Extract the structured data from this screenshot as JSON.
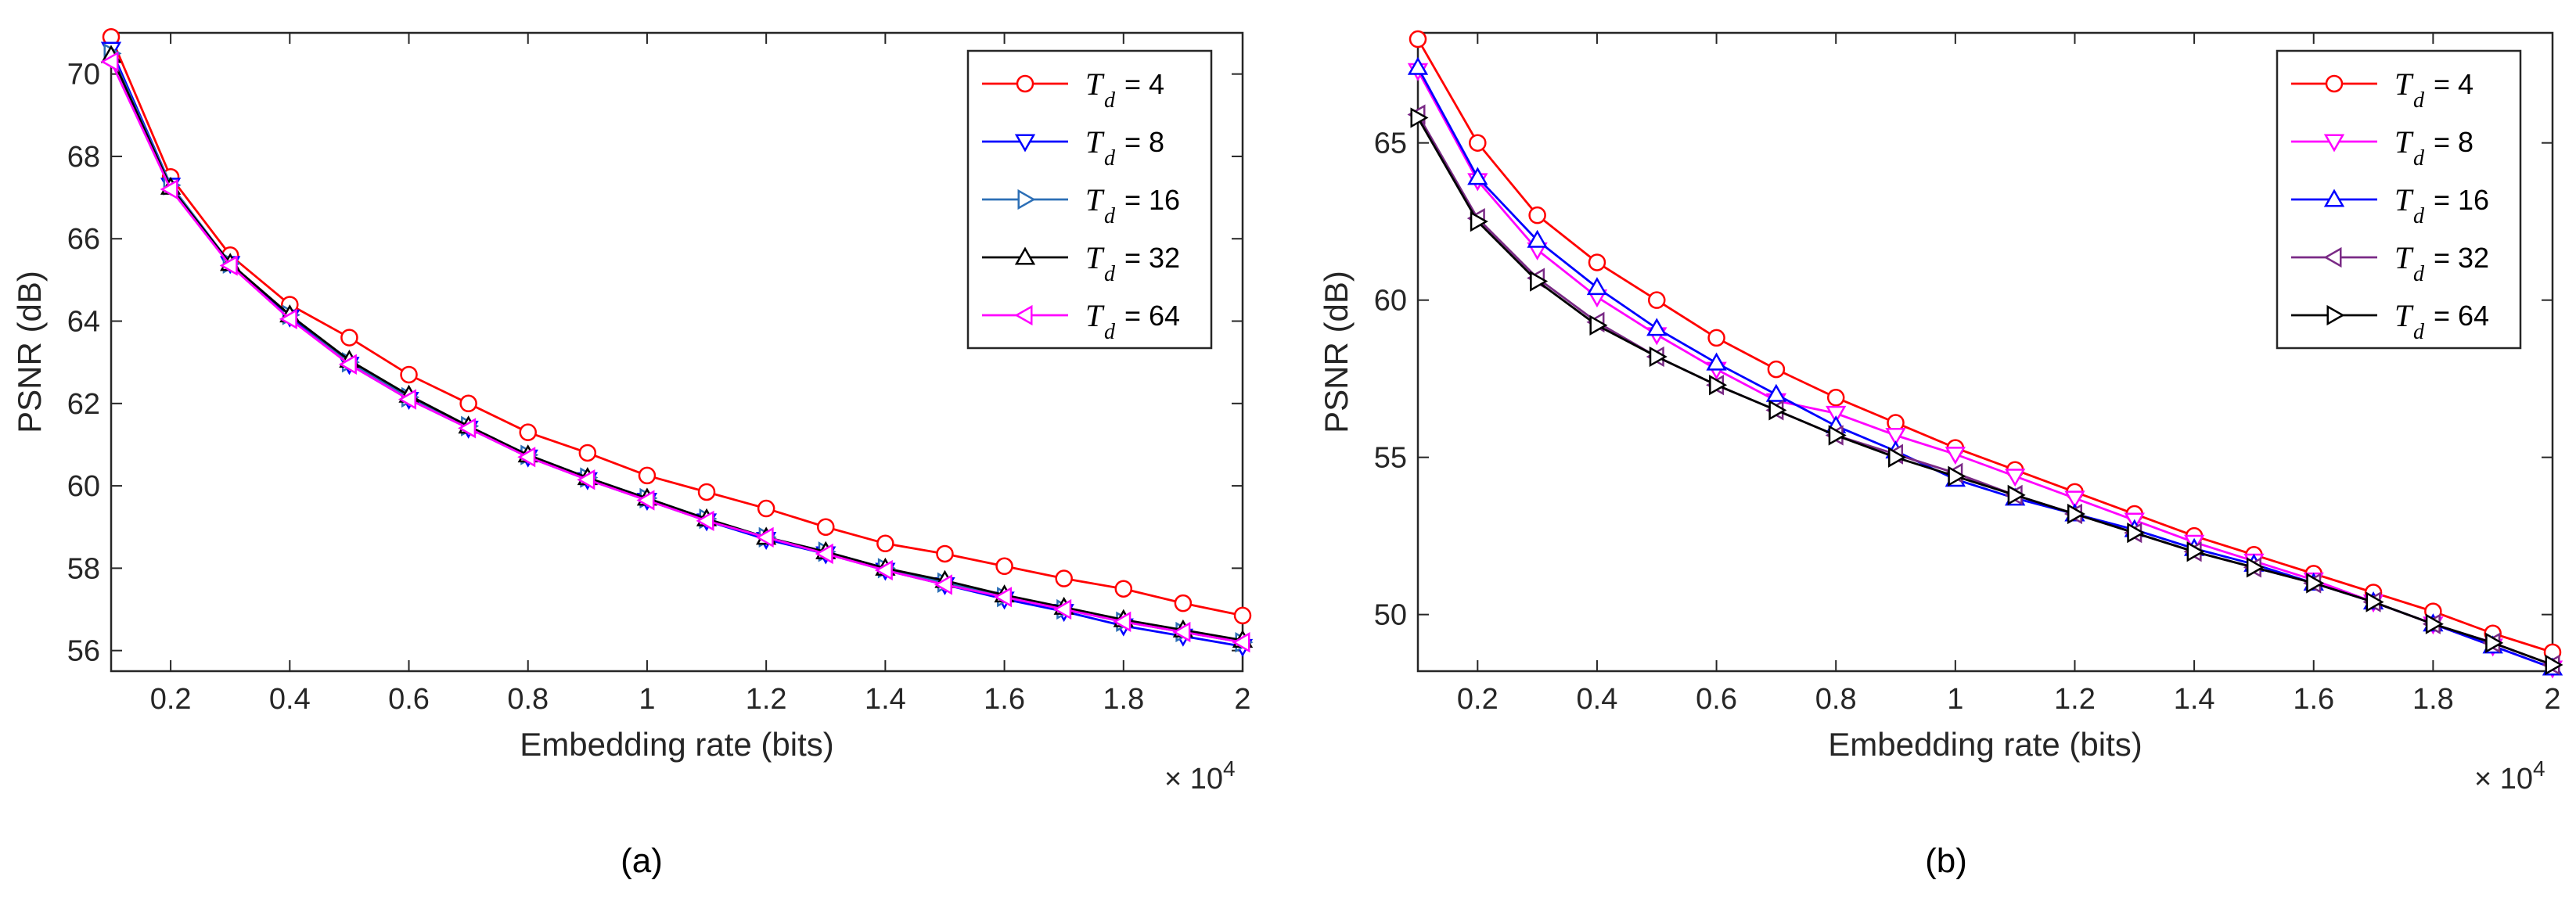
{
  "chart_data": [
    {
      "type": "line",
      "caption": "(a)",
      "xlabel": "Embedding rate (bits)",
      "ylabel": "PSNR (dB)",
      "x_multiplier": "× 10",
      "x_multiplier_exp": "4",
      "xlim": [
        0.1,
        2.0
      ],
      "ylim": [
        55.5,
        71.0
      ],
      "xticks": [
        0.2,
        0.4,
        0.6,
        0.8,
        1.0,
        1.2,
        1.4,
        1.6,
        1.8,
        2.0
      ],
      "xtick_labels": [
        "0.2",
        "0.4",
        "0.6",
        "0.8",
        "1",
        "1.2",
        "1.4",
        "1.6",
        "1.8",
        "2"
      ],
      "yticks": [
        56,
        58,
        60,
        62,
        64,
        66,
        68,
        70
      ],
      "ytick_labels": [
        "56",
        "58",
        "60",
        "62",
        "64",
        "66",
        "68",
        "70"
      ],
      "legend_position": "top-right",
      "x": [
        0.1,
        0.2,
        0.3,
        0.4,
        0.5,
        0.6,
        0.7,
        0.8,
        0.9,
        1.0,
        1.1,
        1.2,
        1.3,
        1.4,
        1.5,
        1.6,
        1.7,
        1.8,
        1.9,
        2.0
      ],
      "series": [
        {
          "name": "T",
          "sub": "d",
          "value": "= 4",
          "color": "#ff0000",
          "marker": "circle",
          "values": [
            70.9,
            67.5,
            65.6,
            64.4,
            63.6,
            62.7,
            62.0,
            61.3,
            60.8,
            60.25,
            59.85,
            59.45,
            59.0,
            58.6,
            58.35,
            58.05,
            57.75,
            57.5,
            57.15,
            56.85
          ]
        },
        {
          "name": "T",
          "sub": "d",
          "value": "= 8",
          "color": "#0000ff",
          "marker": "tri-down",
          "values": [
            70.6,
            67.3,
            65.4,
            64.1,
            62.95,
            62.1,
            61.4,
            60.7,
            60.15,
            59.65,
            59.15,
            58.7,
            58.35,
            57.95,
            57.6,
            57.25,
            56.95,
            56.6,
            56.35,
            56.1
          ]
        },
        {
          "name": "T",
          "sub": "d",
          "value": "= 16",
          "color": "#2c6fb6",
          "marker": "tri-right",
          "values": [
            70.5,
            67.3,
            65.4,
            64.15,
            63.0,
            62.15,
            61.45,
            60.75,
            60.2,
            59.7,
            59.2,
            58.75,
            58.4,
            58.0,
            57.65,
            57.3,
            57.0,
            56.7,
            56.45,
            56.2
          ]
        },
        {
          "name": "T",
          "sub": "d",
          "value": "= 32",
          "color": "#000000",
          "marker": "tri-up",
          "values": [
            70.45,
            67.25,
            65.4,
            64.15,
            63.05,
            62.2,
            61.45,
            60.75,
            60.2,
            59.7,
            59.2,
            58.75,
            58.4,
            58.0,
            57.7,
            57.35,
            57.05,
            56.75,
            56.5,
            56.25
          ]
        },
        {
          "name": "T",
          "sub": "d",
          "value": "= 64",
          "color": "#ff00ff",
          "marker": "tri-left",
          "values": [
            70.3,
            67.2,
            65.35,
            64.05,
            62.95,
            62.1,
            61.4,
            60.7,
            60.15,
            59.65,
            59.15,
            58.75,
            58.35,
            57.95,
            57.6,
            57.3,
            57.0,
            56.7,
            56.45,
            56.2
          ]
        }
      ]
    },
    {
      "type": "line",
      "caption": "(b)",
      "xlabel": "Embedding rate (bits)",
      "ylabel": "PSNR (dB)",
      "x_multiplier": "× 10",
      "x_multiplier_exp": "4",
      "xlim": [
        0.1,
        2.0
      ],
      "ylim": [
        48.2,
        68.5
      ],
      "xticks": [
        0.2,
        0.4,
        0.6,
        0.8,
        1.0,
        1.2,
        1.4,
        1.6,
        1.8,
        2.0
      ],
      "xtick_labels": [
        "0.2",
        "0.4",
        "0.6",
        "0.8",
        "1",
        "1.2",
        "1.4",
        "1.6",
        "1.8",
        "2"
      ],
      "yticks": [
        50,
        55,
        60,
        65
      ],
      "ytick_labels": [
        "50",
        "55",
        "60",
        "65"
      ],
      "legend_position": "top-right",
      "x": [
        0.1,
        0.2,
        0.3,
        0.4,
        0.5,
        0.6,
        0.7,
        0.8,
        0.9,
        1.0,
        1.1,
        1.2,
        1.3,
        1.4,
        1.5,
        1.6,
        1.7,
        1.8,
        1.9,
        2.0
      ],
      "series": [
        {
          "name": "T",
          "sub": "d",
          "value": "= 4",
          "color": "#ff0000",
          "marker": "circle",
          "values": [
            68.3,
            65.0,
            62.7,
            61.2,
            60.0,
            58.8,
            57.8,
            56.9,
            56.1,
            55.3,
            54.6,
            53.9,
            53.2,
            52.5,
            51.9,
            51.3,
            50.7,
            50.1,
            49.4,
            48.8
          ]
        },
        {
          "name": "T",
          "sub": "d",
          "value": "= 8",
          "color": "#ff00ff",
          "marker": "tri-down",
          "values": [
            67.3,
            63.8,
            61.6,
            60.1,
            58.9,
            57.8,
            56.8,
            56.4,
            55.7,
            55.1,
            54.4,
            53.7,
            53.0,
            52.3,
            51.7,
            51.1,
            50.4,
            49.7,
            49.0,
            48.3
          ]
        },
        {
          "name": "T",
          "sub": "d",
          "value": "= 16",
          "color": "#0000ff",
          "marker": "tri-up",
          "values": [
            67.4,
            63.9,
            61.9,
            60.4,
            59.1,
            58.0,
            57.0,
            56.0,
            55.2,
            54.3,
            53.7,
            53.2,
            52.7,
            52.1,
            51.6,
            51.0,
            50.4,
            49.7,
            49.0,
            48.3
          ]
        },
        {
          "name": "T",
          "sub": "d",
          "value": "= 32",
          "color": "#7a2a86",
          "marker": "tri-left",
          "values": [
            65.9,
            62.6,
            60.7,
            59.3,
            58.2,
            57.3,
            56.5,
            55.7,
            55.1,
            54.5,
            53.8,
            53.2,
            52.6,
            52.0,
            51.5,
            51.0,
            50.4,
            49.7,
            49.1,
            48.4
          ]
        },
        {
          "name": "T",
          "sub": "d",
          "value": "= 64",
          "color": "#000000",
          "marker": "tri-right",
          "values": [
            65.8,
            62.5,
            60.6,
            59.2,
            58.2,
            57.3,
            56.5,
            55.7,
            55.0,
            54.4,
            53.8,
            53.2,
            52.6,
            52.0,
            51.5,
            51.0,
            50.4,
            49.7,
            49.1,
            48.4
          ]
        }
      ]
    }
  ]
}
